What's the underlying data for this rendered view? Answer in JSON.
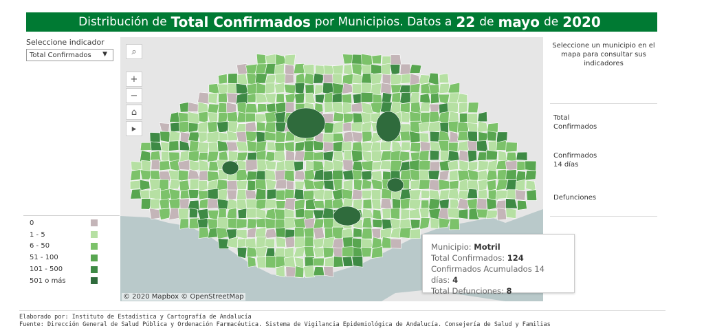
{
  "header": {
    "prefix": "Distribución de",
    "indicator": "Total Confirmados",
    "middle": "por Municipios. Datos a",
    "day": "22",
    "de1": "de",
    "month": "mayo",
    "de2": "de",
    "year": "2020"
  },
  "selector": {
    "label": "Seleccione indicador",
    "value": "Total Confirmados"
  },
  "legend": [
    {
      "label": "0",
      "color": "#c4b5b8"
    },
    {
      "label": "1 - 5",
      "color": "#b6e0a3"
    },
    {
      "label": "6 - 50",
      "color": "#7cc26a"
    },
    {
      "label": "51 - 100",
      "color": "#58a650"
    },
    {
      "label": "101 - 500",
      "color": "#3e8a45"
    },
    {
      "label": "501 o más",
      "color": "#2f6b3c"
    }
  ],
  "map": {
    "attribution": "© 2020 Mapbox © OpenStreetMap",
    "sea_color": "#b9c9ca",
    "land_color": "#e8e8e8"
  },
  "tooltip": {
    "municipio_label": "Municipio:",
    "municipio_value": "Motril",
    "total_label": "Total Confirmados:",
    "total_value": "124",
    "acum_label": "Confirmados Acumulados 14 días:",
    "acum_value": "4",
    "def_label": "Total Defunciones:",
    "def_value": "8"
  },
  "side_panel": {
    "note": "Seleccione un municipio en el mapa para consultar sus indicadores",
    "total_confirmados": "Total Confirmados",
    "confirmados_14": "Confirmados 14 días",
    "defunciones": "Defunciones"
  },
  "footer": {
    "line1": "Elaborado por: Instituto de Estadística y Cartografía de Andalucía",
    "line2": "Fuente: Dirección General de Salud Pública y Ordenación Farmacéutica. Sistema de Vigilancia Epidemiológica de Andalucía. Consejería de Salud y Familias"
  }
}
